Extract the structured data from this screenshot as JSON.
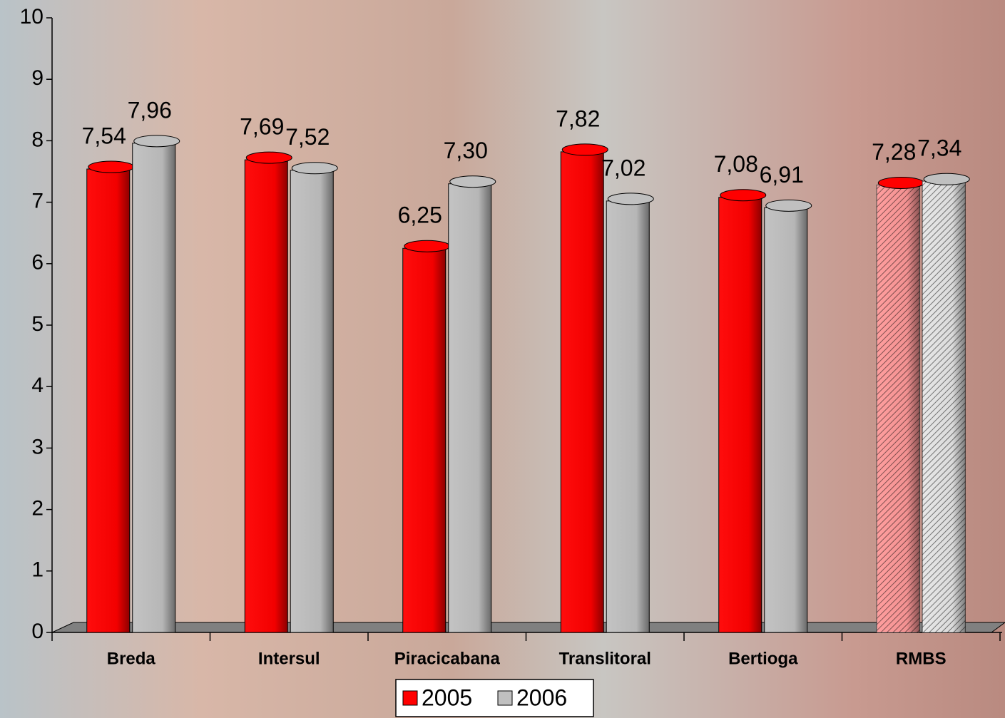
{
  "chart_data": {
    "type": "bar",
    "categories": [
      "Breda",
      "Intersul",
      "Piracicabana",
      "Translitoral",
      "Bertioga",
      "RMBS"
    ],
    "series": [
      {
        "name": "2005",
        "color": "#ff0000",
        "values": [
          7.54,
          7.69,
          6.25,
          7.82,
          7.08,
          7.28
        ],
        "value_labels": [
          "7,54",
          "7,69",
          "6,25",
          "7,82",
          "7,08",
          "7,28"
        ]
      },
      {
        "name": "2006",
        "color": "#c0c0c0",
        "values": [
          7.96,
          7.52,
          7.3,
          7.02,
          6.91,
          7.34
        ],
        "value_labels": [
          "7,96",
          "7,52",
          "7,30",
          "7,02",
          "6,91",
          "7,34"
        ]
      }
    ],
    "hatched": [
      false,
      false,
      false,
      false,
      false,
      true
    ],
    "ylim": [
      0,
      10
    ],
    "yticks": [
      0,
      1,
      2,
      3,
      4,
      5,
      6,
      7,
      8,
      9,
      10
    ],
    "legend": "bottom"
  }
}
